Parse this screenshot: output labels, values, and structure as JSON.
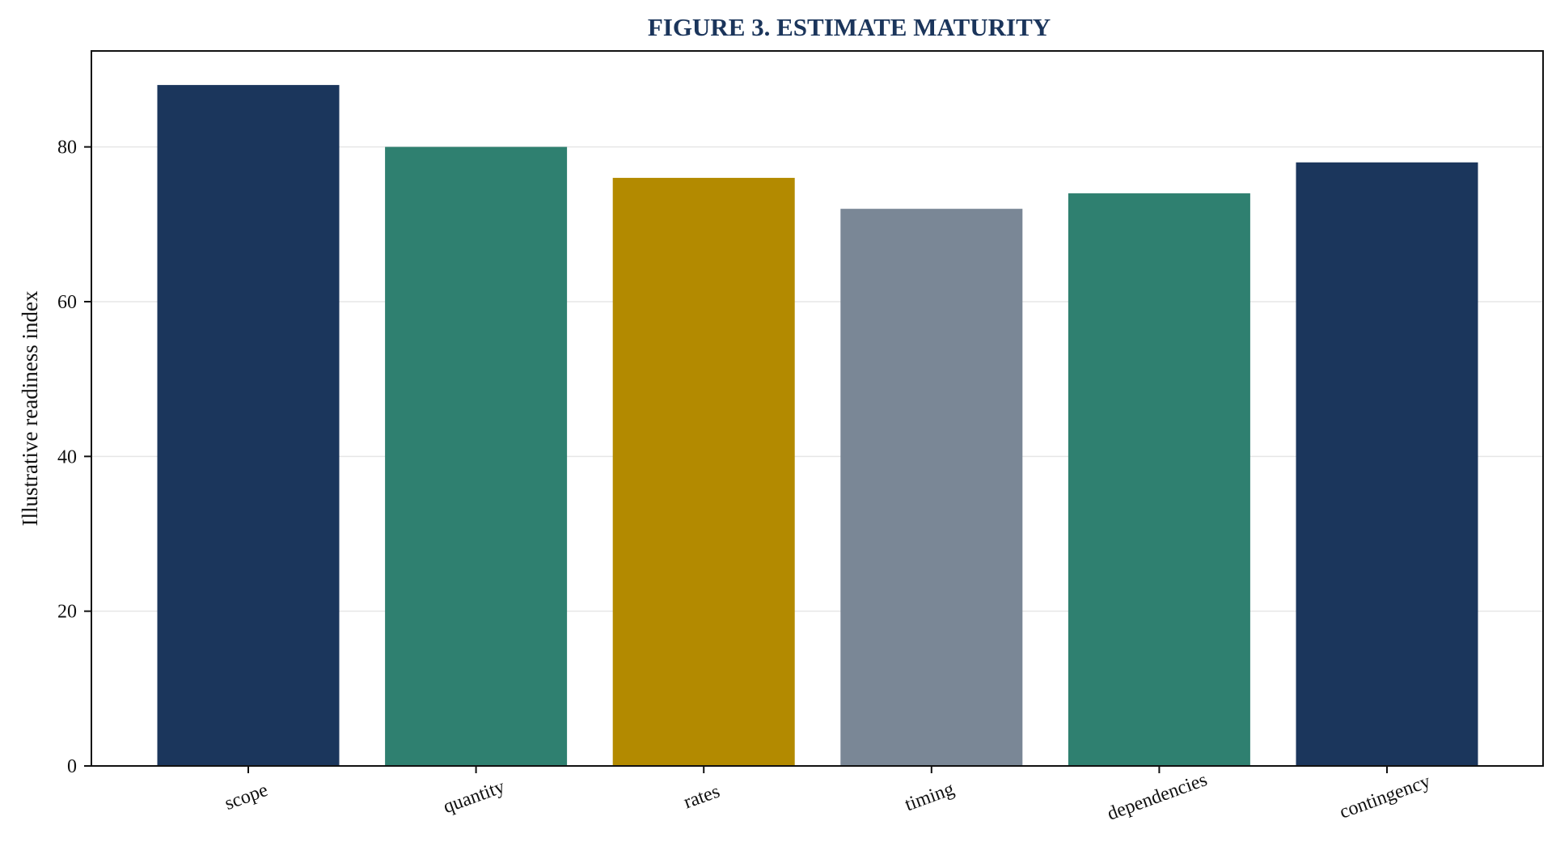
{
  "chart_data": {
    "type": "bar",
    "title": "FIGURE 3. ESTIMATE MATURITY",
    "xlabel": "",
    "ylabel": "Illustrative readiness index",
    "categories": [
      "scope",
      "quantity",
      "rates",
      "timing",
      "dependencies",
      "contingency"
    ],
    "values": [
      88,
      80,
      76,
      72,
      74,
      78
    ],
    "bar_colors": [
      "#1b365c",
      "#2f8070",
      "#b38a00",
      "#7a8796",
      "#2f8070",
      "#1b365c"
    ],
    "yticks": [
      0,
      20,
      40,
      60,
      80
    ],
    "ylim": [
      0,
      92.4
    ],
    "grid": "horizontal, light",
    "legend": "none"
  }
}
